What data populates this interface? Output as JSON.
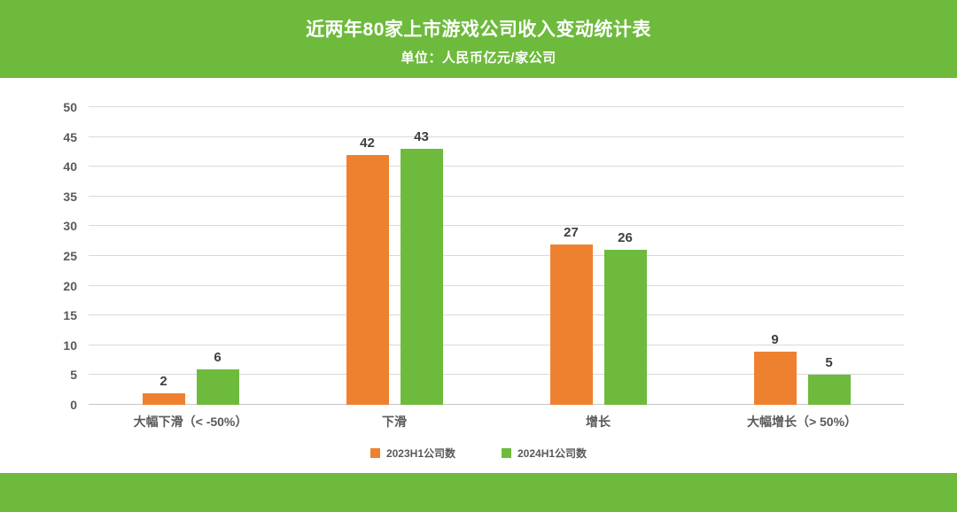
{
  "header": {
    "title": "近两年80家上市游戏公司收入变动统计表",
    "subtitle": "单位：人民币亿元/家公司"
  },
  "theme": {
    "banner_green": "#6eba3c",
    "grid_color": "#d9d9d9",
    "axis_text_color": "#595959",
    "value_label_color": "#3f3f3f",
    "background": "#ffffff"
  },
  "chart_data": {
    "type": "bar",
    "categories": [
      "大幅下滑（< -50%）",
      "下滑",
      "增长",
      "大幅增长（> 50%）"
    ],
    "series": [
      {
        "name": "2023H1公司数",
        "color": "#ee8130",
        "values": [
          2,
          42,
          27,
          9
        ]
      },
      {
        "name": "2024H1公司数",
        "color": "#6eba3c",
        "values": [
          6,
          43,
          26,
          5
        ]
      }
    ],
    "title": "近两年80家上市游戏公司收入变动统计表",
    "subtitle": "单位：人民币亿元/家公司",
    "xlabel": "",
    "ylabel": "",
    "ylim": [
      0,
      50
    ],
    "ytick_step": 5,
    "yticks": [
      0,
      5,
      10,
      15,
      20,
      25,
      30,
      35,
      40,
      45,
      50
    ],
    "grid": true,
    "legend_position": "bottom",
    "value_labels": true
  }
}
